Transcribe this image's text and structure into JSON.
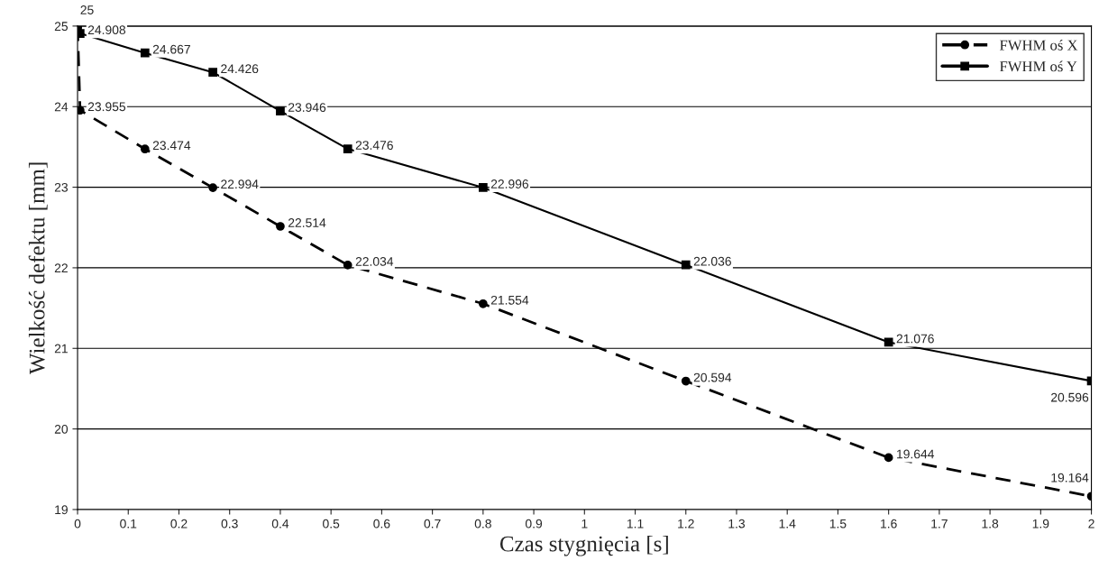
{
  "chart_data": {
    "type": "line",
    "xlabel": "Czas stygnięcia [s]",
    "ylabel": "Wielkość defektu [mm]",
    "xlim": [
      0,
      2
    ],
    "xticks": [
      0,
      0.1,
      0.2,
      0.3,
      0.4,
      0.5,
      0.6,
      0.7,
      0.8,
      0.9,
      1,
      1.1,
      1.2,
      1.3,
      1.4,
      1.5,
      1.6,
      1.7,
      1.8,
      1.9,
      2
    ],
    "ylim": [
      19,
      25
    ],
    "yticks": [
      19,
      20,
      21,
      22,
      23,
      24,
      25
    ],
    "grid": "y",
    "legend": "top right",
    "series": [
      {
        "name": "FWHM oś X",
        "color": "#000000",
        "marker": "circle",
        "line_style": "dashed",
        "x": [
          0,
          0.005,
          0.133,
          0.267,
          0.4,
          0.533,
          0.8,
          1.2,
          1.6,
          2
        ],
        "values": [
          25,
          23.955,
          23.474,
          22.994,
          22.514,
          22.034,
          21.554,
          20.594,
          19.644,
          19.164
        ],
        "value_labels": [
          null,
          "23.955",
          "23.474",
          "22.994",
          "22.514",
          "22.034",
          "21.554",
          "20.594",
          "19.644",
          "19.164"
        ]
      },
      {
        "name": "FWHM oś Y",
        "color": "#000000",
        "marker": "square",
        "line_style": "solid",
        "x": [
          0,
          0.005,
          0.133,
          0.267,
          0.4,
          0.533,
          0.8,
          1.2,
          1.6,
          2
        ],
        "values": [
          25,
          24.908,
          24.667,
          24.426,
          23.946,
          23.476,
          22.996,
          22.036,
          21.076,
          20.596
        ],
        "value_labels": [
          "25",
          "24.908",
          "24.667",
          "24.426",
          "23.946",
          "23.476",
          "22.996",
          "22.036",
          "21.076",
          "20.596"
        ]
      }
    ]
  }
}
